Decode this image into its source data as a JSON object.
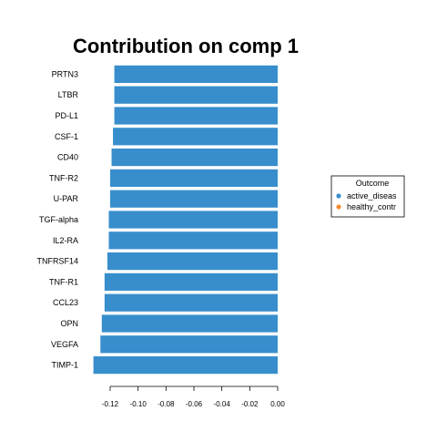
{
  "chart_data": {
    "type": "bar",
    "orientation": "horizontal",
    "title": "Contribution on comp 1",
    "xlabel": "",
    "ylabel": "",
    "categories": [
      "PRTN3",
      "LTBR",
      "PD-L1",
      "CSF-1",
      "CD40",
      "TNF-R2",
      "U-PAR",
      "TGF-alpha",
      "IL2-RA",
      "TNFRSF14",
      "TNF-R1",
      "CCL23",
      "OPN",
      "VEGFA",
      "TIMP-1"
    ],
    "values": [
      -0.117,
      -0.117,
      -0.117,
      -0.118,
      -0.119,
      -0.12,
      -0.12,
      -0.121,
      -0.121,
      -0.122,
      -0.124,
      -0.124,
      -0.126,
      -0.127,
      -0.132
    ],
    "bar_color": "#388ECC",
    "xlim": [
      -0.135,
      0.0
    ],
    "xticks": [
      -0.12,
      -0.1,
      -0.08,
      -0.06,
      -0.04,
      -0.02,
      0.0
    ],
    "xtick_labels": [
      "-0.12",
      "-0.10",
      "-0.08",
      "-0.06",
      "-0.04",
      "-0.02",
      "0.00"
    ],
    "grid": false,
    "legend": {
      "title": "Outcome",
      "placement": "right",
      "entries": [
        {
          "label": "active_diseas",
          "color": "#388ECC"
        },
        {
          "label": "healthy_contr",
          "color": "#F68B33"
        }
      ]
    }
  }
}
